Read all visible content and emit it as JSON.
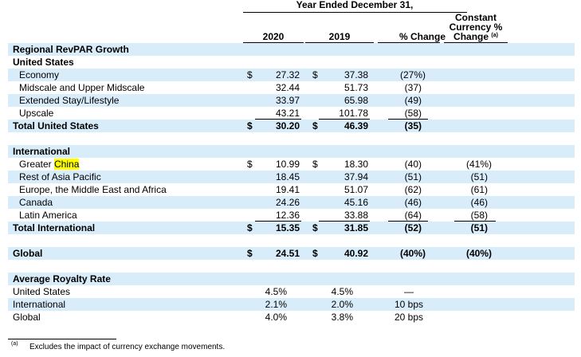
{
  "header": {
    "year_span": "Year Ended December 31,",
    "col_2020": "2020",
    "col_2019": "2019",
    "col_pct": "% Change",
    "col_cc_1": "Constant",
    "col_cc_2": "Currency %",
    "col_cc_3": "Change",
    "col_cc_sup": "(a)"
  },
  "sections": {
    "revpar_title": "Regional RevPAR Growth",
    "us_title": "United States",
    "intl_title": "International",
    "royalty_title": "Average Royalty Rate"
  },
  "currency_symbol": "$",
  "highlight_color": "#ffff00",
  "band_color": "#d9ecf9",
  "us_rows": [
    {
      "label": "Economy",
      "y2020": "27.32",
      "y2019": "37.38",
      "pct": "(27%)"
    },
    {
      "label": "Midscale and Upper Midscale",
      "y2020": "32.44",
      "y2019": "51.73",
      "pct": "(37)"
    },
    {
      "label": "Extended Stay/Lifestyle",
      "y2020": "33.97",
      "y2019": "65.98",
      "pct": "(49)"
    },
    {
      "label": "Upscale",
      "y2020": "43.21",
      "y2019": "101.78",
      "pct": "(58)"
    }
  ],
  "us_total": {
    "label": "Total United States",
    "y2020": "30.20",
    "y2019": "46.39",
    "pct": "(35)"
  },
  "intl_rows": [
    {
      "label_prefix": "Greater ",
      "label_highlight": "China",
      "y2020": "10.99",
      "y2019": "18.30",
      "pct": "(40)",
      "cc": "(41%)"
    },
    {
      "label": "Rest of Asia Pacific",
      "y2020": "18.45",
      "y2019": "37.94",
      "pct": "(51)",
      "cc": "(51)"
    },
    {
      "label": "Europe, the Middle East and Africa",
      "y2020": "19.41",
      "y2019": "51.07",
      "pct": "(62)",
      "cc": "(61)"
    },
    {
      "label": "Canada",
      "y2020": "24.26",
      "y2019": "45.16",
      "pct": "(46)",
      "cc": "(46)"
    },
    {
      "label": "Latin America",
      "y2020": "12.36",
      "y2019": "33.88",
      "pct": "(64)",
      "cc": "(58)"
    }
  ],
  "intl_total": {
    "label": "Total International",
    "y2020": "15.35",
    "y2019": "31.85",
    "pct": "(52)",
    "cc": "(51)"
  },
  "global_row": {
    "label": "Global",
    "y2020": "24.51",
    "y2019": "40.92",
    "pct": "(40%)",
    "cc": "(40%)"
  },
  "royalty_rows": [
    {
      "label": "United States",
      "y2020": "4.5%",
      "y2019": "4.5%",
      "pct": "—"
    },
    {
      "label": "International",
      "y2020": "2.1%",
      "y2019": "2.0%",
      "pct": "10 bps"
    },
    {
      "label": "Global",
      "y2020": "4.0%",
      "y2019": "3.8%",
      "pct": "20 bps"
    }
  ],
  "footnote": {
    "marker": "(a)",
    "text": "Excludes the impact of currency exchange movements."
  }
}
